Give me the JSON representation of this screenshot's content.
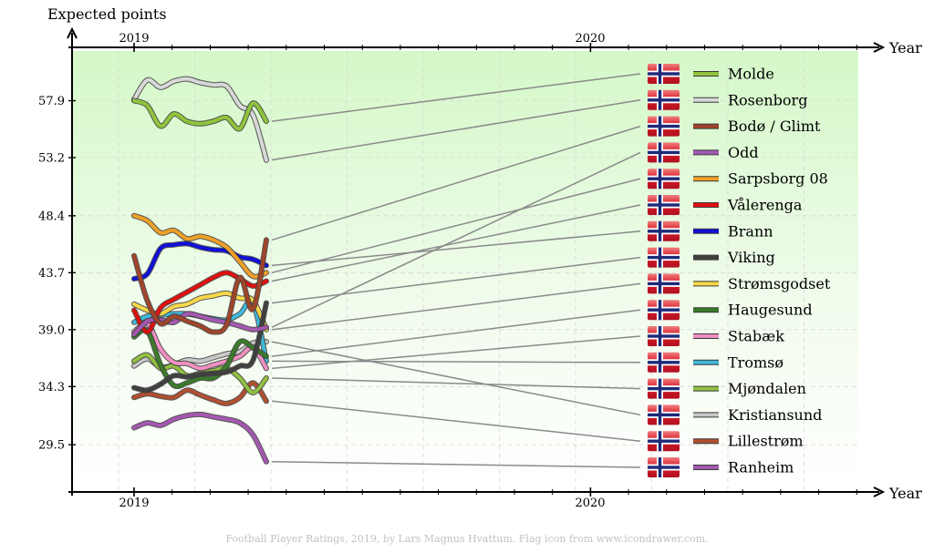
{
  "chart_data": {
    "type": "line",
    "ylabel": "Expected points",
    "xlabel": "Year",
    "x_ticks": [
      "2019",
      "2020"
    ],
    "y_ticks": [
      29.5,
      34.3,
      39.0,
      43.7,
      48.4,
      53.2,
      57.9
    ],
    "ylim": [
      25.6,
      62.0
    ],
    "grid": true,
    "caption": "Football Player Ratings, 2019, by Lars Magnus Hvattum. Flag icon from www.icondrawer.com.",
    "series": [
      {
        "name": "Molde",
        "color": "#8fc43c",
        "values": [
          57.9,
          57.5,
          55.8,
          56.8,
          56.2,
          56.0,
          56.2,
          56.5,
          55.6,
          57.7,
          56.2
        ]
      },
      {
        "name": "Rosenborg",
        "color": "#d8d8d8",
        "values": [
          58.0,
          59.6,
          59.0,
          59.5,
          59.7,
          59.4,
          59.2,
          59.1,
          57.5,
          56.7,
          53.0
        ]
      },
      {
        "name": "Bodø / Glimt",
        "color": "#a0442a",
        "values": [
          45.1,
          41.4,
          39.5,
          40.1,
          39.7,
          39.3,
          38.8,
          39.4,
          43.3,
          40.7,
          46.4
        ]
      },
      {
        "name": "Odd",
        "color": "#a458b0",
        "values": [
          38.6,
          39.7,
          39.8,
          39.6,
          40.3,
          40.1,
          39.8,
          39.6,
          39.3,
          39.0,
          39.2
        ]
      },
      {
        "name": "Sarpsborg 08",
        "color": "#f0a028",
        "values": [
          48.4,
          48.0,
          47.0,
          47.2,
          46.5,
          46.7,
          46.4,
          45.8,
          44.6,
          43.4,
          43.7
        ]
      },
      {
        "name": "Vålerenga",
        "color": "#e01010",
        "values": [
          40.6,
          38.8,
          40.8,
          41.5,
          42.1,
          42.7,
          43.3,
          43.7,
          43.2,
          42.6,
          43.0
        ]
      },
      {
        "name": "Brann",
        "color": "#1010d8",
        "values": [
          43.2,
          43.6,
          45.7,
          46.0,
          46.1,
          45.8,
          45.6,
          45.5,
          45.0,
          44.8,
          44.3
        ]
      },
      {
        "name": "Viking",
        "color": "#404040",
        "values": [
          34.2,
          34.0,
          34.5,
          35.2,
          35.1,
          35.3,
          35.4,
          35.5,
          36.0,
          36.5,
          41.2
        ]
      },
      {
        "name": "Strømsgodset",
        "color": "#f8d848",
        "values": [
          41.1,
          40.6,
          40.3,
          40.9,
          41.1,
          41.6,
          41.8,
          42.0,
          41.6,
          41.4,
          39.0
        ]
      },
      {
        "name": "Haugesund",
        "color": "#3a7a2a",
        "values": [
          38.4,
          38.9,
          36.1,
          34.4,
          34.6,
          35.0,
          35.0,
          36.0,
          38.0,
          37.5,
          36.8
        ]
      },
      {
        "name": "Stabæk",
        "color": "#f090c0",
        "values": [
          38.8,
          39.5,
          37.4,
          36.3,
          36.2,
          35.8,
          36.1,
          36.4,
          36.8,
          37.5,
          35.8
        ]
      },
      {
        "name": "Tromsø",
        "color": "#40b8d8",
        "values": [
          39.6,
          40.1,
          40.2,
          40.3,
          40.3,
          40.1,
          39.9,
          39.8,
          40.3,
          41.2,
          36.4
        ]
      },
      {
        "name": "Mjøndalen",
        "color": "#90c040",
        "values": [
          36.4,
          36.9,
          35.8,
          36.0,
          35.2,
          35.4,
          35.6,
          35.8,
          35.0,
          33.8,
          35.0
        ]
      },
      {
        "name": "Kristiansund",
        "color": "#c8c8c8",
        "values": [
          36.0,
          36.6,
          35.9,
          36.1,
          36.5,
          36.4,
          36.7,
          37.0,
          37.2,
          37.9,
          38.0
        ]
      },
      {
        "name": "Lillestrøm",
        "color": "#b05030",
        "values": [
          33.4,
          33.7,
          33.5,
          33.4,
          34.0,
          33.6,
          33.2,
          32.9,
          33.4,
          34.6,
          33.1
        ]
      },
      {
        "name": "Ranheim",
        "color": "#a458b0",
        "values": [
          30.9,
          31.3,
          31.1,
          31.6,
          31.9,
          32.0,
          31.8,
          31.6,
          31.3,
          30.3,
          28.1
        ]
      }
    ]
  }
}
